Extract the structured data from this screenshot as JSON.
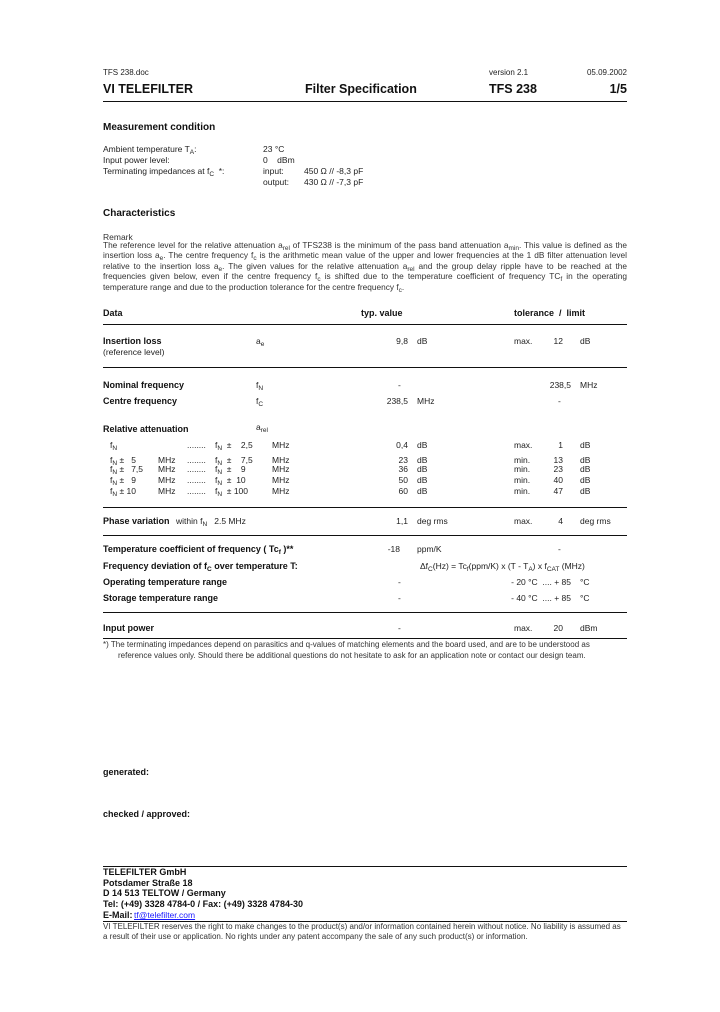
{
  "header": {
    "filename": "TFS 238.doc",
    "version": "version 2.1",
    "date": "05.09.2002",
    "company": "VI TELEFILTER",
    "doc_title": "Filter Specification",
    "product": "TFS 238",
    "page": "1/5"
  },
  "measurement": {
    "title": "Measurement condition",
    "ambient_label": [
      "Ambient temperature T",
      {
        "sub": "A"
      },
      ":"
    ],
    "ambient_value": "23 °C",
    "power_label": "Input power level:",
    "power_value": "0    dBm",
    "impedance_label": [
      "Terminating impedances at f",
      {
        "sub": "C"
      },
      "  *:"
    ],
    "input_label": "input:",
    "input_value": "450 Ω // -8,3 pF",
    "output_label": "output:",
    "output_value": "430 Ω // -7,3 pF"
  },
  "characteristics": {
    "title": "Characteristics",
    "remark_label": "Remark",
    "remark": [
      "The reference level for the relative attenuation a",
      {
        "sub": "rel"
      },
      " of TFS238 is the minimum of the pass band attenuation a",
      {
        "sub": "min"
      },
      ". This value is defined as the insertion loss a",
      {
        "sub": "e"
      },
      ". The centre frequency f",
      {
        "sub": "c"
      },
      " is the arithmetic mean value of the upper and lower frequencies at the 1 dB filter attenuation level relative to the insertion loss a",
      {
        "sub": "e"
      },
      ". The given values for the relative attenuation a",
      {
        "sub": "rel"
      },
      " and the group delay ripple have to be reached at the frequencies given below, even if the centre frequency f",
      {
        "sub": "c"
      },
      " is shifted due to the temperature coefficient of frequency TC",
      {
        "sub": "f"
      },
      " in the operating temperature range and due to the production tolerance for the centre frequency f",
      {
        "sub": "c"
      },
      "."
    ]
  },
  "table": {
    "col_data": "Data",
    "col_typ": "typ. value",
    "col_tol": "tolerance  /  limit",
    "insertion": {
      "label": "Insertion loss",
      "sublabel": "(reference level)",
      "symbol": [
        "a",
        {
          "sub": "e"
        }
      ],
      "typ": "9,8",
      "typ_unit": "dB",
      "lim_kind": "max.",
      "lim": "12",
      "lim_unit": "dB"
    },
    "nominal": {
      "label": "Nominal frequency",
      "symbol": [
        "f",
        {
          "sub": "N"
        }
      ],
      "typ": "-",
      "lim": "238,5",
      "lim_unit": "MHz"
    },
    "centre": {
      "label": "Centre frequency",
      "symbol": [
        "f",
        {
          "sub": "C"
        }
      ],
      "typ": "238,5",
      "typ_unit": "MHz",
      "lim": "-"
    },
    "relatt": {
      "label": "Relative attenuation",
      "symbol": [
        "a",
        {
          "sub": "rel"
        }
      ],
      "rows": [
        {
          "from": [
            "f",
            {
              "sub": "N"
            }
          ],
          "from_unit": "",
          "dots": "........",
          "to": [
            "f",
            {
              "sub": "N"
            },
            "  ±    2,5"
          ],
          "to_unit": "MHz",
          "typ": "0,4",
          "typ_unit": "dB",
          "kind": "max.",
          "lim": "1",
          "lim_unit": "dB"
        },
        {
          "from": [
            "f",
            {
              "sub": "N"
            },
            " ±   5"
          ],
          "from_unit": "MHz",
          "dots": "........",
          "to": [
            "f",
            {
              "sub": "N"
            },
            "  ±    7,5"
          ],
          "to_unit": "MHz",
          "typ": "23",
          "typ_unit": "dB",
          "kind": "min.",
          "lim": "13",
          "lim_unit": "dB"
        },
        {
          "from": [
            "f",
            {
              "sub": "N"
            },
            " ±   7,5"
          ],
          "from_unit": "MHz",
          "dots": "........",
          "to": [
            "f",
            {
              "sub": "N"
            },
            "  ±    9"
          ],
          "to_unit": "MHz",
          "typ": "36",
          "typ_unit": "dB",
          "kind": "min.",
          "lim": "23",
          "lim_unit": "dB"
        },
        {
          "from": [
            "f",
            {
              "sub": "N"
            },
            " ±   9"
          ],
          "from_unit": "MHz",
          "dots": "........",
          "to": [
            "f",
            {
              "sub": "N"
            },
            "  ±  10"
          ],
          "to_unit": "MHz",
          "typ": "50",
          "typ_unit": "dB",
          "kind": "min.",
          "lim": "40",
          "lim_unit": "dB"
        },
        {
          "from": [
            "f",
            {
              "sub": "N"
            },
            " ± 10"
          ],
          "from_unit": "MHz",
          "dots": "........",
          "to": [
            "f",
            {
              "sub": "N"
            },
            "  ± 100"
          ],
          "to_unit": "MHz",
          "typ": "60",
          "typ_unit": "dB",
          "kind": "min.",
          "lim": "47",
          "lim_unit": "dB"
        }
      ]
    },
    "phase": {
      "label": "Phase variation",
      "cond": [
        "within f",
        {
          "sub": "N"
        },
        "   2.5 MHz"
      ],
      "typ": "1,1",
      "typ_unit": "deg rms",
      "kind": "max.",
      "lim": "4",
      "lim_unit": "deg rms"
    },
    "tcf": {
      "label": "Temperature coefficient of frequency  ( Tc",
      "label_sub": "f",
      "label_end": " )**",
      "typ": "-18",
      "typ_unit": "ppm/K",
      "lim": "-"
    },
    "freqdev": {
      "label": [
        "Frequency deviation of f",
        {
          "sub": "C"
        },
        " over temperature T:"
      ],
      "formula": [
        "Δf",
        {
          "sub": "C"
        },
        "(Hz) = Tc",
        {
          "sub": "f"
        },
        "(ppm/K) x (T - T",
        {
          "sub": "A"
        },
        ") x f",
        {
          "sub": "CAT"
        },
        " (MHz)"
      ]
    },
    "optemp": {
      "label": "Operating temperature range",
      "typ": "-",
      "lim": "- 20 °C  .... + 85",
      "lim_unit": "°C"
    },
    "sttemp": {
      "label": "Storage temperature range",
      "typ": "-",
      "lim": "- 40 °C  .... + 85",
      "lim_unit": "°C"
    },
    "inpower": {
      "label": "Input power",
      "typ": "-",
      "kind": "max.",
      "lim": "20",
      "lim_unit": "dBm"
    }
  },
  "footnote": {
    "line1": "*) The terminating impedances depend on parasitics and q-values of matching elements and the board used, and are to be understood as",
    "line2": "reference values only. Should there be additional questions do not hesitate to ask for an application note or contact our design team."
  },
  "signoff": {
    "generated": "generated:",
    "checked": "checked / approved:"
  },
  "footer": {
    "company": "TELEFILTER GmbH",
    "street": "Potsdamer Straße 18",
    "city": "D 14 513 TELTOW / Germany",
    "phone": "Tel: (+49) 3328 4784-0 / Fax: (+49) 3328 4784-30",
    "email_label": "E-Mail:",
    "email": "tf@telefilter.com",
    "disclaimer1": "VI TELEFILTER reserves the right to make changes to the product(s) and/or information contained herein without notice.  No liability is assumed as",
    "disclaimer2": "a result of their use or application.  No rights under any patent accompany the sale of any such product(s) or information."
  },
  "colors": {
    "text": "#222222",
    "link": "#1a1aff",
    "rule": "#111111"
  }
}
